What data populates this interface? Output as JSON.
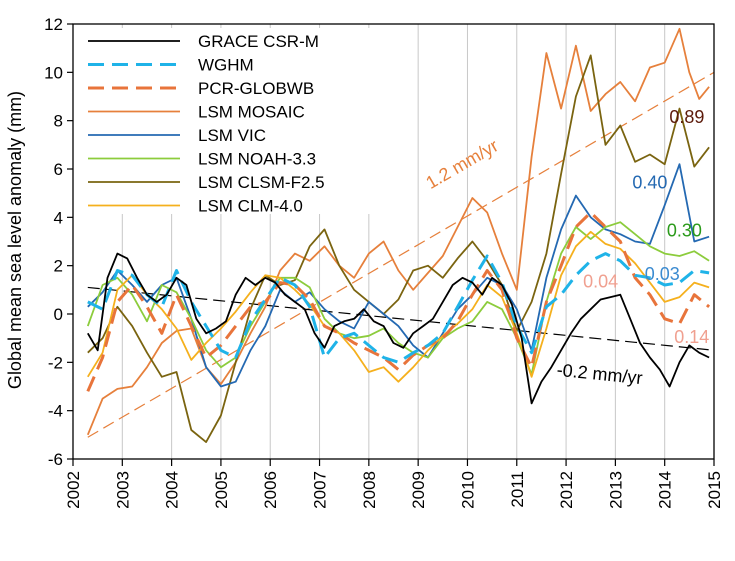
{
  "chart_data": {
    "type": "line",
    "title": "",
    "xlabel": "",
    "ylabel": "Global mean sea level anomaly (mm)",
    "xlim": [
      2002,
      2015
    ],
    "ylim": [
      -6,
      12
    ],
    "xticks": [
      "2002",
      "2003",
      "2004",
      "2005",
      "2006",
      "2007",
      "2008",
      "2009",
      "2010",
      "2011",
      "2012",
      "2013",
      "2014",
      "2015"
    ],
    "yticks": [
      "-6",
      "-4",
      "-2",
      "0",
      "2",
      "4",
      "6",
      "8",
      "10",
      "12"
    ],
    "grid": "vertical",
    "legend_position": "top-left",
    "series": [
      {
        "name": "GRACE CSR-M",
        "color": "#000000",
        "dash": "solid",
        "x": [
          2002.3,
          2002.5,
          2002.7,
          2002.9,
          2003.1,
          2003.3,
          2003.5,
          2003.7,
          2003.9,
          2004.1,
          2004.3,
          2004.5,
          2004.7,
          2004.9,
          2005.1,
          2005.3,
          2005.5,
          2005.7,
          2005.9,
          2006.1,
          2006.3,
          2006.5,
          2006.7,
          2006.9,
          2007.1,
          2007.3,
          2007.5,
          2007.7,
          2007.9,
          2008.1,
          2008.3,
          2008.5,
          2008.7,
          2008.9,
          2009.1,
          2009.3,
          2009.5,
          2009.7,
          2009.9,
          2010.1,
          2010.3,
          2010.5,
          2010.7,
          2010.9,
          2011.1,
          2011.3,
          2011.5,
          2011.7,
          2011.9,
          2012.1,
          2012.3,
          2012.5,
          2012.7,
          2012.9,
          2013.1,
          2013.3,
          2013.5,
          2013.7,
          2013.9,
          2014.1,
          2014.3,
          2014.5,
          2014.7,
          2014.9
        ],
        "values": [
          -0.8,
          -1.5,
          1.5,
          2.5,
          2.3,
          1.5,
          0.8,
          0.5,
          0.8,
          1.5,
          1.2,
          -0.2,
          -0.8,
          -0.6,
          -0.3,
          0.8,
          1.5,
          1.2,
          1.5,
          1.3,
          0.8,
          0.5,
          0.2,
          -0.8,
          -1.4,
          -0.5,
          -0.3,
          -0.2,
          0.2,
          -0.3,
          -0.5,
          -1.2,
          -1.4,
          -0.8,
          -0.5,
          -0.2,
          0.5,
          1.2,
          1.5,
          1.3,
          0.8,
          1.5,
          1.2,
          0.4,
          -1.0,
          -3.7,
          -2.8,
          -2.2,
          -1.5,
          -0.8,
          -0.2,
          0.2,
          0.6,
          0.7,
          0.8,
          -0.2,
          -1.2,
          -1.8,
          -2.3,
          -3.0,
          -2.0,
          -1.3,
          -1.6,
          -1.8
        ]
      },
      {
        "name": "WGHM",
        "color": "#1fb3e8",
        "dash": "long-dash",
        "x": [
          2002.3,
          2002.6,
          2002.9,
          2003.2,
          2003.5,
          2003.8,
          2004.1,
          2004.4,
          2004.7,
          2005.0,
          2005.3,
          2005.6,
          2005.9,
          2006.2,
          2006.5,
          2006.8,
          2007.1,
          2007.4,
          2007.7,
          2008.0,
          2008.3,
          2008.6,
          2008.9,
          2009.2,
          2009.5,
          2009.8,
          2010.1,
          2010.4,
          2010.7,
          2011.0,
          2011.3,
          2011.6,
          2011.9,
          2012.2,
          2012.5,
          2012.8,
          2013.1,
          2013.4,
          2013.7,
          2014.0,
          2014.3,
          2014.6,
          2014.9
        ],
        "values": [
          0.5,
          0.2,
          1.8,
          1.6,
          0.8,
          0.3,
          1.8,
          0.5,
          -0.5,
          -1.5,
          -1.8,
          -0.3,
          0.6,
          1.5,
          1.2,
          0.3,
          -1.8,
          -1.0,
          -0.8,
          -1.3,
          -1.8,
          -2.0,
          -1.6,
          -1.3,
          -0.8,
          0.3,
          1.4,
          2.4,
          1.3,
          -0.5,
          -1.6,
          0.3,
          0.8,
          1.6,
          2.2,
          2.5,
          2.2,
          1.6,
          1.5,
          1.2,
          1.3,
          1.8,
          1.7
        ]
      },
      {
        "name": "PCR-GLOBWB",
        "color": "#e8743b",
        "dash": "long-dash",
        "x": [
          2002.3,
          2002.6,
          2002.9,
          2003.2,
          2003.5,
          2003.8,
          2004.1,
          2004.4,
          2004.7,
          2005.0,
          2005.3,
          2005.6,
          2005.9,
          2006.2,
          2006.5,
          2006.8,
          2007.1,
          2007.4,
          2007.7,
          2008.0,
          2008.3,
          2008.6,
          2008.9,
          2009.2,
          2009.5,
          2009.8,
          2010.1,
          2010.4,
          2010.7,
          2011.0,
          2011.3,
          2011.6,
          2011.9,
          2012.2,
          2012.5,
          2012.8,
          2013.1,
          2013.4,
          2013.7,
          2014.0,
          2014.3,
          2014.6,
          2014.9
        ],
        "values": [
          -3.2,
          -1.8,
          0.5,
          1.2,
          0.3,
          -0.8,
          0.8,
          -0.5,
          -1.8,
          -1.3,
          -0.5,
          0.3,
          0.5,
          1.3,
          1.2,
          0.6,
          -0.5,
          -0.8,
          -1.2,
          -1.5,
          -1.8,
          -2.3,
          -1.7,
          -1.3,
          -1.0,
          -0.3,
          0.8,
          1.8,
          1.0,
          -1.0,
          -2.2,
          0.5,
          2.0,
          3.6,
          4.2,
          3.6,
          3.0,
          1.5,
          0.8,
          -0.2,
          -0.4,
          0.8,
          0.3
        ]
      },
      {
        "name": "LSM MOSAIC",
        "color": "#e6803c",
        "dash": "solid",
        "x": [
          2002.3,
          2002.6,
          2002.9,
          2003.2,
          2003.5,
          2003.8,
          2004.1,
          2004.4,
          2004.7,
          2005.0,
          2005.3,
          2005.6,
          2005.9,
          2006.2,
          2006.5,
          2006.8,
          2007.1,
          2007.4,
          2007.7,
          2008.0,
          2008.3,
          2008.6,
          2008.9,
          2009.2,
          2009.5,
          2009.8,
          2010.1,
          2010.4,
          2010.7,
          2011.0,
          2011.3,
          2011.6,
          2011.9,
          2012.2,
          2012.5,
          2012.8,
          2013.1,
          2013.4,
          2013.7,
          2014.0,
          2014.3,
          2014.5,
          2014.7,
          2014.9
        ],
        "values": [
          -5.0,
          -3.5,
          -3.1,
          -3.0,
          -2.2,
          -1.2,
          -0.7,
          -0.6,
          -2.2,
          -2.9,
          -2.0,
          -0.8,
          0.3,
          1.8,
          2.5,
          2.2,
          2.8,
          2.0,
          1.5,
          2.5,
          3.0,
          1.8,
          1.0,
          1.7,
          2.4,
          3.6,
          4.8,
          4.2,
          2.5,
          1.0,
          6.5,
          10.8,
          8.5,
          11.1,
          8.4,
          9.1,
          9.6,
          8.8,
          10.2,
          10.4,
          11.8,
          10.0,
          8.9,
          9.4
        ]
      },
      {
        "name": "LSM VIC",
        "color": "#2469b2",
        "dash": "solid",
        "x": [
          2002.3,
          2002.6,
          2002.9,
          2003.2,
          2003.5,
          2003.8,
          2004.1,
          2004.4,
          2004.7,
          2005.0,
          2005.3,
          2005.6,
          2005.9,
          2006.2,
          2006.5,
          2006.8,
          2007.1,
          2007.4,
          2007.7,
          2008.0,
          2008.3,
          2008.6,
          2008.9,
          2009.2,
          2009.5,
          2009.8,
          2010.1,
          2010.4,
          2010.7,
          2011.0,
          2011.3,
          2011.6,
          2011.9,
          2012.2,
          2012.5,
          2012.8,
          2013.1,
          2013.4,
          2013.7,
          2014.0,
          2014.3,
          2014.6,
          2014.9
        ],
        "values": [
          0.3,
          0.9,
          1.8,
          1.2,
          0.5,
          1.2,
          1.5,
          -0.2,
          -2.2,
          -3.0,
          -2.8,
          -1.5,
          -0.5,
          1.0,
          0.5,
          0.9,
          0.2,
          -0.3,
          -0.6,
          0.5,
          0.0,
          -0.5,
          -1.3,
          -1.8,
          -0.8,
          0.2,
          0.8,
          1.5,
          1.2,
          0.2,
          -1.5,
          1.5,
          3.5,
          4.9,
          4.0,
          3.5,
          3.3,
          3.0,
          2.9,
          4.5,
          6.2,
          3.0,
          3.2
        ]
      },
      {
        "name": "LSM NOAH-3.3",
        "color": "#8ccc3c",
        "dash": "solid",
        "x": [
          2002.3,
          2002.6,
          2002.9,
          2003.2,
          2003.5,
          2003.8,
          2004.1,
          2004.4,
          2004.7,
          2005.0,
          2005.3,
          2005.6,
          2005.9,
          2006.2,
          2006.5,
          2006.8,
          2007.1,
          2007.4,
          2007.7,
          2008.0,
          2008.3,
          2008.6,
          2008.9,
          2009.2,
          2009.5,
          2009.8,
          2010.1,
          2010.4,
          2010.7,
          2011.0,
          2011.3,
          2011.6,
          2011.9,
          2012.2,
          2012.5,
          2012.8,
          2013.1,
          2013.4,
          2013.7,
          2014.0,
          2014.3,
          2014.6,
          2014.9
        ],
        "values": [
          -0.5,
          1.2,
          1.5,
          0.8,
          -0.3,
          1.2,
          0.9,
          -0.2,
          -1.5,
          -2.2,
          -1.8,
          -0.5,
          0.5,
          1.5,
          1.5,
          1.1,
          -0.2,
          -0.8,
          -1.0,
          -0.9,
          -0.6,
          -1.2,
          -1.6,
          -1.8,
          -1.0,
          -0.6,
          -0.3,
          0.5,
          0.2,
          -1.0,
          -2.5,
          0.5,
          2.5,
          3.6,
          3.1,
          3.6,
          3.8,
          3.3,
          2.8,
          2.5,
          2.4,
          2.6,
          2.2
        ]
      },
      {
        "name": "LSM CLSM-F2.5",
        "color": "#7a6410",
        "dash": "solid",
        "x": [
          2002.3,
          2002.6,
          2002.9,
          2003.2,
          2003.5,
          2003.8,
          2004.1,
          2004.4,
          2004.7,
          2005.0,
          2005.3,
          2005.6,
          2005.9,
          2006.2,
          2006.5,
          2006.8,
          2007.1,
          2007.4,
          2007.7,
          2008.0,
          2008.3,
          2008.6,
          2008.9,
          2009.2,
          2009.5,
          2009.8,
          2010.1,
          2010.4,
          2010.7,
          2011.0,
          2011.3,
          2011.6,
          2011.9,
          2012.2,
          2012.5,
          2012.8,
          2013.1,
          2013.4,
          2013.7,
          2014.0,
          2014.3,
          2014.6,
          2014.9
        ],
        "values": [
          -1.6,
          -1.0,
          0.3,
          -0.5,
          -1.6,
          -2.6,
          -2.4,
          -4.8,
          -5.3,
          -4.2,
          -2.0,
          0.2,
          1.6,
          1.2,
          1.4,
          2.8,
          3.5,
          2.0,
          1.0,
          0.5,
          0.0,
          0.6,
          1.8,
          2.0,
          1.5,
          2.3,
          3.0,
          2.2,
          1.2,
          -0.7,
          0.5,
          2.5,
          5.8,
          9.0,
          10.7,
          7.0,
          7.8,
          6.3,
          6.6,
          6.2,
          8.5,
          6.1,
          6.9
        ]
      },
      {
        "name": "LSM CLM-4.0",
        "color": "#f5b01d",
        "dash": "solid",
        "x": [
          2002.3,
          2002.6,
          2002.9,
          2003.2,
          2003.5,
          2003.8,
          2004.1,
          2004.4,
          2004.7,
          2005.0,
          2005.3,
          2005.6,
          2005.9,
          2006.2,
          2006.5,
          2006.8,
          2007.1,
          2007.4,
          2007.7,
          2008.0,
          2008.3,
          2008.6,
          2008.9,
          2009.2,
          2009.5,
          2009.8,
          2010.1,
          2010.4,
          2010.7,
          2011.0,
          2011.3,
          2011.6,
          2011.9,
          2012.2,
          2012.5,
          2012.8,
          2013.1,
          2013.4,
          2013.7,
          2014.0,
          2014.3,
          2014.6,
          2014.9
        ],
        "values": [
          -2.6,
          -1.6,
          1.0,
          1.6,
          0.8,
          0.2,
          -0.6,
          -1.9,
          -1.2,
          -0.6,
          0.1,
          0.9,
          1.6,
          1.5,
          1.0,
          0.4,
          -0.5,
          -0.8,
          -1.5,
          -2.4,
          -2.2,
          -2.8,
          -2.2,
          -1.5,
          -0.9,
          -0.4,
          0.2,
          1.2,
          0.7,
          -0.8,
          -2.6,
          -0.6,
          1.6,
          2.8,
          3.4,
          2.9,
          2.7,
          2.1,
          1.3,
          0.5,
          0.7,
          1.3,
          1.1
        ]
      }
    ],
    "trend_lines": [
      {
        "label": "1.2 mm/yr",
        "color": "#e6803c",
        "x": [
          2002.3,
          2015.0
        ],
        "values": [
          -5.1,
          10.0
        ]
      },
      {
        "label": "-0.2 mm/yr",
        "color": "#000000",
        "x": [
          2002.3,
          2015.0
        ],
        "values": [
          1.1,
          -1.5
        ]
      }
    ],
    "annotations": [
      {
        "text": "0.89",
        "color": "#5c1a0a",
        "x": 2014.45,
        "y": 7.9
      },
      {
        "text": "0.40",
        "color": "#2469b2",
        "x": 2013.7,
        "y": 5.2
      },
      {
        "text": "0.30",
        "color": "#2a9a1a",
        "x": 2014.4,
        "y": 3.2
      },
      {
        "text": "0.04",
        "color": "#f0a090",
        "x": 2012.7,
        "y": 1.1
      },
      {
        "text": "0.03",
        "color": "#3a8ad0",
        "x": 2013.95,
        "y": 1.4
      },
      {
        "text": "0.14",
        "color": "#f0a090",
        "x": 2014.55,
        "y": -1.2
      }
    ]
  }
}
